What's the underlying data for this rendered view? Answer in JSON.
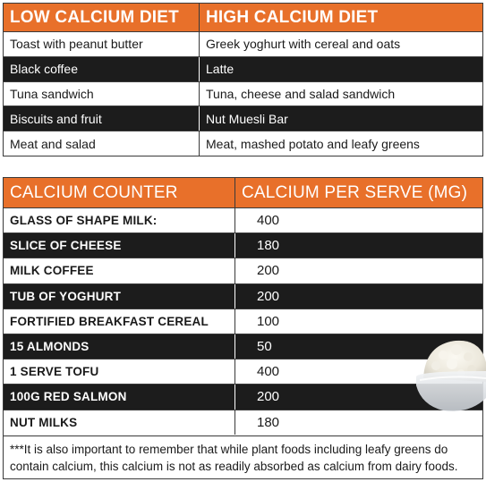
{
  "diet_table": {
    "header": {
      "low": "LOW CALCIUM DIET",
      "high": "HIGH CALCIUM DIET"
    },
    "rows": [
      {
        "low": "Toast with peanut butter",
        "high": "Greek yoghurt with cereal and oats"
      },
      {
        "low": "Black coffee",
        "high": "Latte"
      },
      {
        "low": "Tuna sandwich",
        "high": "Tuna, cheese and salad sandwich"
      },
      {
        "low": "Biscuits and fruit",
        "high": "Nut Muesli Bar"
      },
      {
        "low": "Meat and salad",
        "high": "Meat, mashed potato and leafy greens"
      }
    ]
  },
  "counter_table": {
    "header": {
      "item": "CALCIUM COUNTER",
      "value": "CALCIUM PER SERVE (MG)"
    },
    "rows": [
      {
        "item": "GLASS OF SHAPE MILK:",
        "value": "400"
      },
      {
        "item": "SLICE OF CHEESE",
        "value": "180"
      },
      {
        "item": "MILK COFFEE",
        "value": "200"
      },
      {
        "item": "TUB OF YOGHURT",
        "value": "200"
      },
      {
        "item": "FORTIFIED BREAKFAST CEREAL",
        "value": "100"
      },
      {
        "item": "15 ALMONDS",
        "value": "50"
      },
      {
        "item": "1 SERVE TOFU",
        "value": "400"
      },
      {
        "item": "100G RED SALMON",
        "value": "200"
      },
      {
        "item": "NUT MILKS",
        "value": "180"
      }
    ],
    "note": "***It is also important to remember that while plant foods including leafy greens do contain calcium, this calcium is not as readily absorbed as calcium from dairy foods."
  },
  "colors": {
    "accent": "#e8702a",
    "dark_row": "#1c1c1c"
  },
  "icons": {
    "photo": "cottage-cheese-bowl-icon"
  }
}
